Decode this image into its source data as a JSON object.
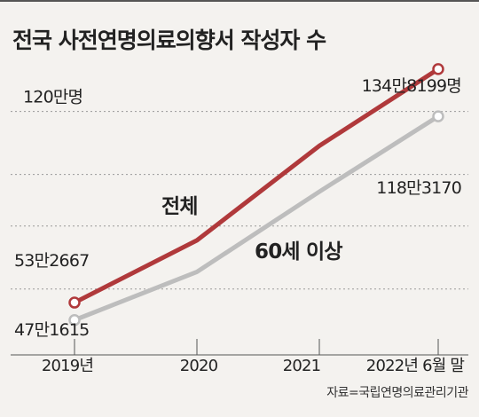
{
  "title": "전국 사전연명의료의향서 작성자 수",
  "source": "자료=국립연명의료관리기관",
  "colors": {
    "total": "#b0393b",
    "over60": "#bdbdbd",
    "text": "#222222",
    "grid": "#999999"
  },
  "chart_data": {
    "type": "line",
    "x": [
      "2019년",
      "2020",
      "2021",
      "2022년 6월 말"
    ],
    "gridline_labels": [
      "120만명"
    ],
    "series": [
      {
        "name": "전체",
        "values": [
          532667,
          750000,
          1080000,
          1348199
        ],
        "labels": [
          "53만2667",
          null,
          null,
          "134만8199명"
        ]
      },
      {
        "name": "60세 이상",
        "values": [
          471615,
          640000,
          920000,
          1183170
        ],
        "labels": [
          "47만1615",
          null,
          null,
          "118만3170"
        ]
      }
    ],
    "ylim": [
      350000,
      1450000
    ],
    "gridlines": [
      1200000,
      980000,
      800000,
      580000
    ],
    "grid": true,
    "legend": "inline labels"
  }
}
